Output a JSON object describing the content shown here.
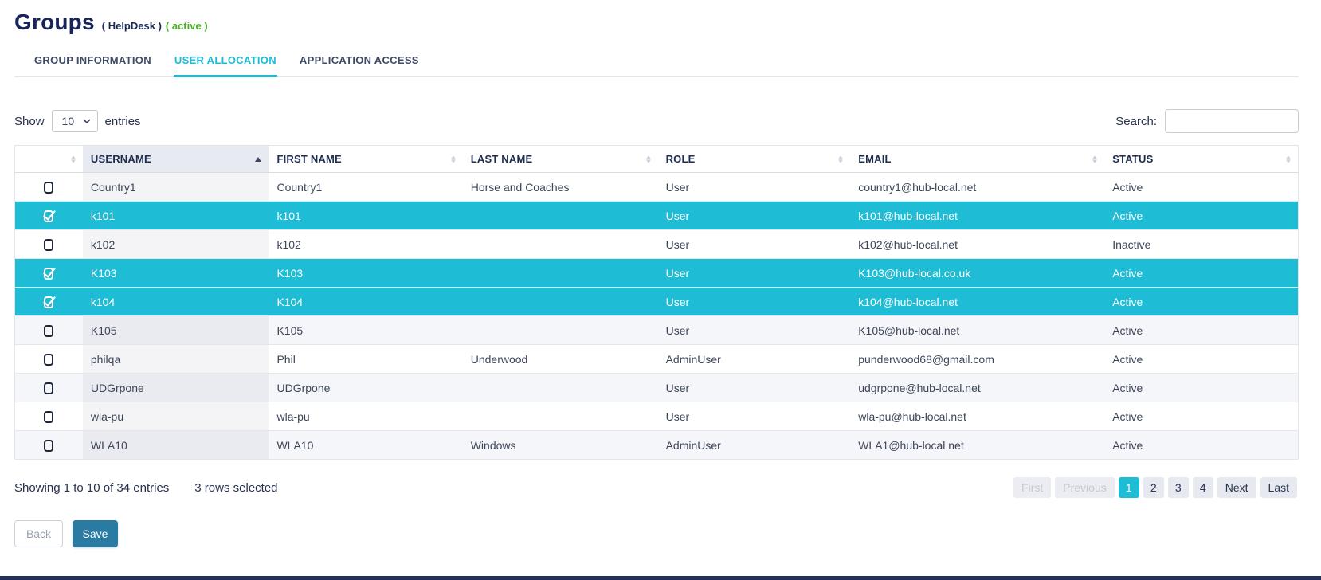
{
  "page": {
    "title": "Groups",
    "subtitle": "( HelpDesk )",
    "status": "( active )"
  },
  "tabs": [
    {
      "label": "GROUP INFORMATION",
      "active": false
    },
    {
      "label": "USER ALLOCATION",
      "active": true
    },
    {
      "label": "APPLICATION ACCESS",
      "active": false
    }
  ],
  "controls": {
    "show_label": "Show",
    "page_size": "10",
    "entries_label": "entries",
    "search_label": "Search:",
    "search_value": ""
  },
  "table": {
    "columns": [
      "USERNAME",
      "FIRST NAME",
      "LAST NAME",
      "ROLE",
      "EMAIL",
      "STATUS"
    ],
    "sorted_column": "USERNAME",
    "sort_direction": "ascending",
    "rows": [
      {
        "selected": false,
        "username": "Country1",
        "first_name": "Country1",
        "last_name": "Horse and Coaches",
        "role": "User",
        "email": "country1@hub-local.net",
        "status": "Active"
      },
      {
        "selected": true,
        "username": "k101",
        "first_name": "k101",
        "last_name": "",
        "role": "User",
        "email": "k101@hub-local.net",
        "status": "Active"
      },
      {
        "selected": false,
        "username": "k102",
        "first_name": "k102",
        "last_name": "",
        "role": "User",
        "email": "k102@hub-local.net",
        "status": "Inactive"
      },
      {
        "selected": true,
        "username": "K103",
        "first_name": "K103",
        "last_name": "",
        "role": "User",
        "email": "K103@hub-local.co.uk",
        "status": "Active"
      },
      {
        "selected": true,
        "username": "k104",
        "first_name": "K104",
        "last_name": "",
        "role": "User",
        "email": "k104@hub-local.net",
        "status": "Active"
      },
      {
        "selected": false,
        "username": "K105",
        "first_name": "K105",
        "last_name": "",
        "role": "User",
        "email": "K105@hub-local.net",
        "status": "Active"
      },
      {
        "selected": false,
        "username": "philqa",
        "first_name": "Phil",
        "last_name": "Underwood",
        "role": "AdminUser",
        "email": "punderwood68@gmail.com",
        "status": "Active"
      },
      {
        "selected": false,
        "username": "UDGrpone",
        "first_name": "UDGrpone",
        "last_name": "",
        "role": "User",
        "email": "udgrpone@hub-local.net",
        "status": "Active"
      },
      {
        "selected": false,
        "username": "wla-pu",
        "first_name": "wla-pu",
        "last_name": "",
        "role": "User",
        "email": "wla-pu@hub-local.net",
        "status": "Active"
      },
      {
        "selected": false,
        "username": "WLA10",
        "first_name": "WLA10",
        "last_name": "Windows",
        "role": "AdminUser",
        "email": "WLA1@hub-local.net",
        "status": "Active"
      }
    ]
  },
  "footer": {
    "info": "Showing 1 to 10 of 34 entries",
    "selected_info": "3 rows selected",
    "pagination": {
      "first": "First",
      "previous": "Previous",
      "pages": [
        "1",
        "2",
        "3",
        "4"
      ],
      "active_page": "1",
      "next": "Next",
      "last": "Last"
    }
  },
  "actions": {
    "back": "Back",
    "save": "Save"
  },
  "colors": {
    "accent": "#1ebcd5",
    "navy": "#17255a",
    "green": "#4caf27",
    "save_button": "#2a7ba4"
  }
}
